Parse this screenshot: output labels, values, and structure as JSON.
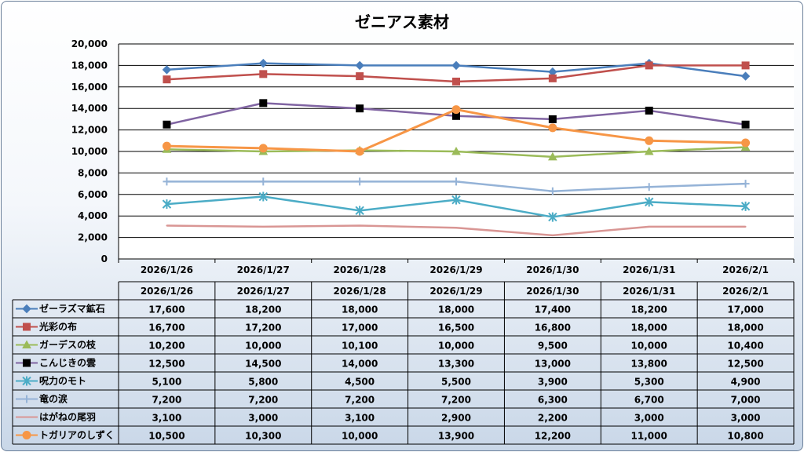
{
  "chart_data": {
    "type": "line",
    "title": "ゼニアス素材",
    "categories": [
      "2026/1/26",
      "2026/1/27",
      "2026/1/28",
      "2026/1/29",
      "2026/1/30",
      "2026/1/31",
      "2026/2/1"
    ],
    "ylim": [
      0,
      20000
    ],
    "ytick_labels": [
      "0",
      "2,000",
      "4,000",
      "6,000",
      "8,000",
      "10,000",
      "12,000",
      "14,000",
      "16,000",
      "18,000",
      "20,000"
    ],
    "grid": true,
    "legend": "data-table-below",
    "series": [
      {
        "name": "ゼーラズマ鉱石",
        "color": "#4a7ebb",
        "marker": "diamond",
        "values": [
          17600,
          18200,
          18000,
          18000,
          17400,
          18200,
          17000
        ],
        "labels": [
          "17,600",
          "18,200",
          "18,000",
          "18,000",
          "17,400",
          "18,200",
          "17,000"
        ]
      },
      {
        "name": "光彩の布",
        "color": "#c0504d",
        "marker": "square",
        "values": [
          16700,
          17200,
          17000,
          16500,
          16800,
          18000,
          18000
        ],
        "labels": [
          "16,700",
          "17,200",
          "17,000",
          "16,500",
          "16,800",
          "18,000",
          "18,000"
        ]
      },
      {
        "name": "ガーデスの枝",
        "color": "#9bbb59",
        "marker": "triangle",
        "values": [
          10200,
          10000,
          10100,
          10000,
          9500,
          10000,
          10400
        ],
        "labels": [
          "10,200",
          "10,000",
          "10,100",
          "10,000",
          "9,500",
          "10,000",
          "10,400"
        ]
      },
      {
        "name": "こんじきの雲",
        "color": "#8064a2",
        "marker": "square-black",
        "values": [
          12500,
          14500,
          14000,
          13300,
          13000,
          13800,
          12500
        ],
        "labels": [
          "12,500",
          "14,500",
          "14,000",
          "13,300",
          "13,000",
          "13,800",
          "12,500"
        ]
      },
      {
        "name": "呪力のモト",
        "color": "#4bacc6",
        "marker": "asterisk",
        "values": [
          5100,
          5800,
          4500,
          5500,
          3900,
          5300,
          4900
        ],
        "labels": [
          "5,100",
          "5,800",
          "4,500",
          "5,500",
          "3,900",
          "5,300",
          "4,900"
        ]
      },
      {
        "name": "竜の涙",
        "color": "#95b3d7",
        "marker": "plus",
        "values": [
          7200,
          7200,
          7200,
          7200,
          6300,
          6700,
          7000
        ],
        "labels": [
          "7,200",
          "7,200",
          "7,200",
          "7,200",
          "6,300",
          "6,700",
          "7,000"
        ]
      },
      {
        "name": "はがねの尾羽",
        "color": "#d99694",
        "marker": "none",
        "values": [
          3100,
          3000,
          3100,
          2900,
          2200,
          3000,
          3000
        ],
        "labels": [
          "3,100",
          "3,000",
          "3,100",
          "2,900",
          "2,200",
          "3,000",
          "3,000"
        ]
      },
      {
        "name": "トガリアのしずく",
        "color": "#f79646",
        "marker": "circle",
        "values": [
          10500,
          10300,
          10000,
          13900,
          12200,
          11000,
          10800
        ],
        "labels": [
          "10,500",
          "10,300",
          "10,000",
          "13,900",
          "12,200",
          "11,000",
          "10,800"
        ]
      }
    ]
  }
}
